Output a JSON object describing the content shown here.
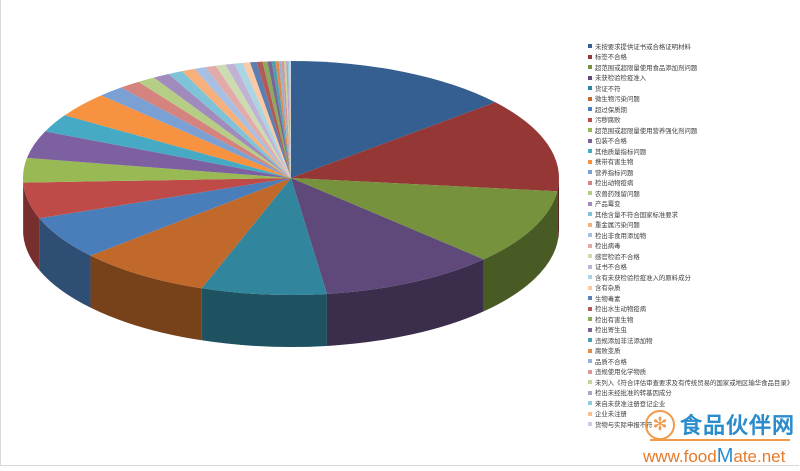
{
  "chart_data": {
    "type": "pie",
    "style": "3d-pie",
    "title": "",
    "legend_position": "right",
    "start_angle": "12 o'clock, clockwise",
    "categories": [
      "未按要求提供证书或合格证明材料",
      "标签不合格",
      "超范围或超限量使用食品添加剂问题",
      "未获检验检疫准入",
      "货证不符",
      "微生物污染问题",
      "超过保质期",
      "污秽腐败",
      "超范围或超限量使用营养强化剂问题",
      "包装不合格",
      "其他质量指标问题",
      "携带有害生物",
      "营养指标问题",
      "检出动物疫病",
      "农兽药残留问题",
      "产品霉变",
      "其他含量不符合国家标准要求",
      "重金属污染问题",
      "检出非食用添加物",
      "检出病毒",
      "感官检验不合格",
      "证书不合格",
      "含有未获检验检疫准入的原料成分",
      "含有杂质",
      "生物毒素",
      "检出水生动物疫病",
      "检出有害生物",
      "检出寄生虫",
      "违规添加非法添加物",
      "腐败变质",
      "品质不合格",
      "违规使用化学物质",
      "未列入《符合评估审查要求及有传统贸易的国家或地区输华食品目录》",
      "检出未经批准的转基因成分",
      "来自未获准注册登记企业",
      "企业未注册",
      "货物与实际申报不符"
    ],
    "values": [
      13.9,
      13.1,
      10.5,
      10.7,
      7.6,
      8.1,
      6.0,
      5.0,
      3.4,
      3.8,
      2.5,
      3.5,
      1.6,
      1.3,
      1.1,
      1.0,
      0.9,
      0.8,
      0.7,
      0.65,
      0.6,
      0.55,
      0.5,
      0.45,
      0.4,
      0.35,
      0.3,
      0.25,
      0.22,
      0.2,
      0.18,
      0.15,
      0.12,
      0.1,
      0.08,
      0.06,
      0.05
    ],
    "value_unit": "estimated percent share",
    "colors": [
      "#365f91",
      "#953735",
      "#76923c",
      "#5f497a",
      "#31859c",
      "#c0692a",
      "#4a7ebb",
      "#be4b48",
      "#98b954",
      "#7d60a0",
      "#46aac5",
      "#f69240",
      "#7aa0d4",
      "#d5837f",
      "#b5cd85",
      "#a18bbd",
      "#7fc3d8",
      "#f8b07a",
      "#a7bfe3",
      "#e2aaa8",
      "#cddcb0",
      "#c0b2d4",
      "#a9d5e4",
      "#fac9a5",
      "#5b7fb0",
      "#b25a58",
      "#8daa5a",
      "#7a6597",
      "#4f9fb3",
      "#e08b4c",
      "#95b3d7",
      "#d99694",
      "#c3d69b",
      "#b3a2c7",
      "#93cddd",
      "#fac090",
      "#c5d0e6"
    ]
  },
  "watermark": {
    "cn": "食品伙伴网",
    "url_pre": "www.food",
    "url_m": "M",
    "url_post": "ate.net"
  }
}
